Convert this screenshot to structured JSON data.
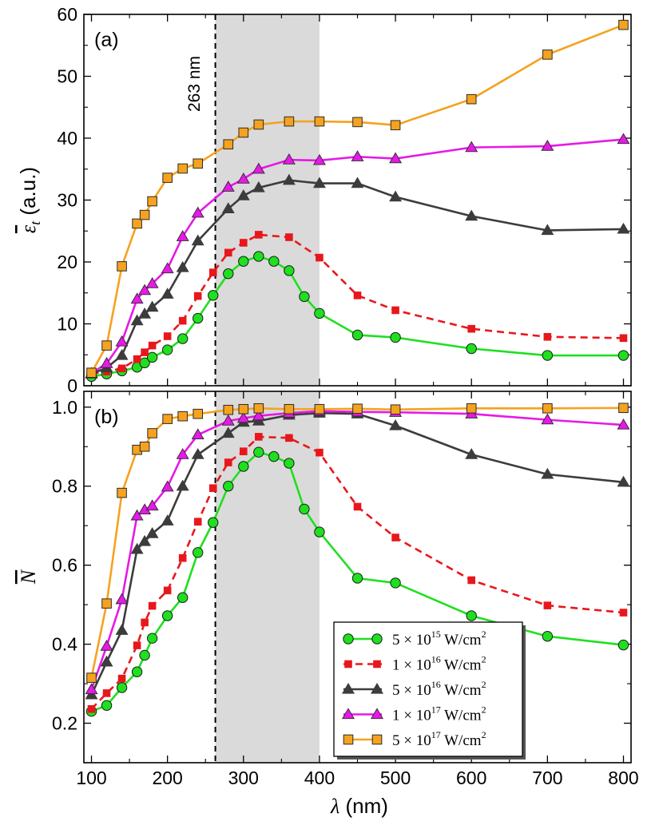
{
  "chart_data": {
    "type": "line",
    "xlabel": "λ (nm)",
    "xlim": [
      90,
      810
    ],
    "xticks": [
      100,
      200,
      300,
      400,
      500,
      600,
      700,
      800
    ],
    "annotation": {
      "x": 263,
      "text": "263 nm"
    },
    "shade": {
      "x0": 263,
      "x1": 400,
      "color": "#dadada"
    },
    "legend": {
      "location": "lower-right",
      "entries": [
        {
          "prefix": "5 × 10",
          "exp": "15",
          "unit": " W/cm",
          "unit_exp": "2"
        },
        {
          "prefix": "1 × 10",
          "exp": "16",
          "unit": " W/cm",
          "unit_exp": "2"
        },
        {
          "prefix": "5 × 10",
          "exp": "16",
          "unit": " W/cm",
          "unit_exp": "2"
        },
        {
          "prefix": "1 × 10",
          "exp": "17",
          "unit": " W/cm",
          "unit_exp": "2"
        },
        {
          "prefix": "5 × 10",
          "exp": "17",
          "unit": " W/cm",
          "unit_exp": "2"
        }
      ]
    },
    "styles": [
      {
        "color": "#1fe01f",
        "marker": "circle",
        "dash": false
      },
      {
        "color": "#e8171c",
        "marker": "square",
        "dash": true
      },
      {
        "color": "#3c3c3c",
        "marker": "triangle",
        "dash": false
      },
      {
        "color": "#e619e6",
        "marker": "triangle",
        "dash": false
      },
      {
        "color": "#f5a21f",
        "marker": "square-outline",
        "dash": false
      }
    ],
    "panels": [
      {
        "label": "(a)",
        "ylabel_main": "ε",
        "ylabel_sub": "t",
        "ylabel_unit": " (a.u.)",
        "ylim": [
          0,
          60
        ],
        "yticks": [
          0,
          10,
          20,
          30,
          40,
          50,
          60
        ],
        "series": [
          {
            "name": "5 × 10^15 W/cm^2",
            "x": [
              100,
              120,
              140,
              160,
              170,
              180,
              200,
              220,
              240,
              260,
              280,
              300,
              320,
              340,
              360,
              380,
              400,
              450,
              500,
              600,
              700,
              800
            ],
            "values": [
              1.5,
              1.9,
              2.4,
              3.0,
              3.7,
              4.6,
              5.8,
              7.6,
              10.9,
              14.6,
              18.1,
              20.1,
              20.9,
              20.1,
              18.6,
              14.4,
              11.7,
              8.2,
              7.8,
              6.0,
              4.9,
              4.9
            ]
          },
          {
            "name": "1 × 10^16 W/cm^2",
            "x": [
              100,
              120,
              140,
              160,
              170,
              180,
              200,
              220,
              240,
              260,
              280,
              300,
              320,
              360,
              400,
              450,
              500,
              600,
              700,
              800
            ],
            "values": [
              1.9,
              2.3,
              2.8,
              4.3,
              5.4,
              6.5,
              8.0,
              10.5,
              14.5,
              18.3,
              21.5,
              23.1,
              24.4,
              24.0,
              20.7,
              14.6,
              12.2,
              9.2,
              7.9,
              7.7
            ]
          },
          {
            "name": "5 × 10^16 W/cm^2",
            "x": [
              100,
              120,
              140,
              160,
              170,
              180,
              200,
              220,
              240,
              280,
              300,
              320,
              360,
              400,
              450,
              500,
              600,
              700,
              800
            ],
            "values": [
              1.9,
              2.9,
              4.9,
              10.5,
              11.6,
              12.7,
              14.8,
              19.1,
              23.4,
              28.6,
              30.7,
              32.0,
              33.2,
              32.7,
              32.7,
              30.5,
              27.4,
              25.1,
              25.3
            ]
          },
          {
            "name": "1 × 10^17 W/cm^2",
            "x": [
              100,
              120,
              140,
              160,
              170,
              180,
              200,
              220,
              240,
              280,
              300,
              320,
              360,
              400,
              450,
              500,
              600,
              700,
              800
            ],
            "values": [
              2.0,
              3.6,
              7.1,
              14.0,
              15.4,
              16.5,
              18.9,
              24.1,
              27.9,
              32.1,
              33.4,
              35.0,
              36.5,
              36.4,
              37.0,
              36.7,
              38.5,
              38.7,
              39.8
            ]
          },
          {
            "name": "5 × 10^17 W/cm^2",
            "x": [
              100,
              120,
              140,
              160,
              170,
              180,
              200,
              220,
              240,
              280,
              300,
              320,
              360,
              400,
              450,
              500,
              600,
              700,
              800
            ],
            "values": [
              2.1,
              6.5,
              19.3,
              26.2,
              27.6,
              29.8,
              33.6,
              35.1,
              35.9,
              39.0,
              40.9,
              42.2,
              42.7,
              42.7,
              42.6,
              42.1,
              46.3,
              53.5,
              58.3
            ]
          }
        ]
      },
      {
        "label": "(b)",
        "ylabel_main": "N",
        "ylim": [
          0.1,
          1.04
        ],
        "yticks": [
          0.2,
          0.4,
          0.6,
          0.8,
          1.0
        ],
        "yticklabels": [
          "0.2",
          "0.4",
          "0.6",
          "0.8",
          "1.0"
        ],
        "series": [
          {
            "name": "5 × 10^15 W/cm^2",
            "x": [
              100,
              120,
              140,
              160,
              170,
              180,
              200,
              220,
              240,
              260,
              280,
              300,
              320,
              340,
              360,
              380,
              400,
              450,
              500,
              600,
              700,
              800
            ],
            "values": [
              0.23,
              0.245,
              0.29,
              0.33,
              0.372,
              0.415,
              0.472,
              0.518,
              0.632,
              0.708,
              0.8,
              0.85,
              0.886,
              0.875,
              0.858,
              0.742,
              0.684,
              0.567,
              0.555,
              0.472,
              0.42,
              0.398
            ]
          },
          {
            "name": "1 × 10^16 W/cm^2",
            "x": [
              100,
              120,
              140,
              160,
              170,
              180,
              200,
              220,
              240,
              260,
              280,
              300,
              320,
              360,
              400,
              450,
              500,
              600,
              700,
              800
            ],
            "values": [
              0.236,
              0.276,
              0.313,
              0.397,
              0.455,
              0.497,
              0.536,
              0.618,
              0.71,
              0.795,
              0.86,
              0.888,
              0.925,
              0.922,
              0.885,
              0.748,
              0.67,
              0.562,
              0.498,
              0.48
            ]
          },
          {
            "name": "5 × 10^16 W/cm^2",
            "x": [
              100,
              120,
              140,
              160,
              170,
              180,
              200,
              220,
              240,
              280,
              300,
              320,
              360,
              400,
              450,
              500,
              600,
              700,
              800
            ],
            "values": [
              0.272,
              0.355,
              0.435,
              0.64,
              0.66,
              0.68,
              0.712,
              0.8,
              0.88,
              0.934,
              0.962,
              0.965,
              0.98,
              0.985,
              0.983,
              0.953,
              0.88,
              0.83,
              0.81
            ]
          },
          {
            "name": "1 × 10^17 W/cm^2",
            "x": [
              100,
              120,
              140,
              160,
              170,
              180,
              200,
              220,
              240,
              280,
              300,
              320,
              360,
              400,
              450,
              500,
              600,
              700,
              800
            ],
            "values": [
              0.285,
              0.395,
              0.513,
              0.725,
              0.74,
              0.75,
              0.798,
              0.88,
              0.93,
              0.965,
              0.972,
              0.978,
              0.985,
              0.99,
              0.988,
              0.987,
              0.983,
              0.968,
              0.955
            ]
          },
          {
            "name": "5 × 10^17 W/cm^2",
            "x": [
              100,
              120,
              140,
              160,
              170,
              180,
              200,
              220,
              240,
              280,
              300,
              320,
              360,
              400,
              450,
              500,
              600,
              700,
              800
            ],
            "values": [
              0.315,
              0.503,
              0.783,
              0.892,
              0.9,
              0.934,
              0.97,
              0.977,
              0.983,
              0.993,
              0.995,
              0.997,
              0.995,
              0.995,
              0.996,
              0.994,
              0.997,
              0.997,
              0.998
            ]
          }
        ]
      }
    ]
  }
}
